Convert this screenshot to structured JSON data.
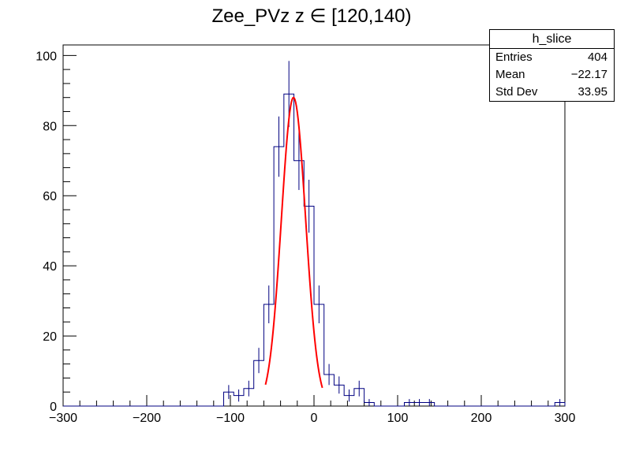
{
  "chart_data": {
    "type": "histogram",
    "title": "Zee_PVz z  ∈ [120,140)",
    "xlabel": "",
    "ylabel": "",
    "xlim": [
      -300,
      300
    ],
    "ylim": [
      0,
      103
    ],
    "x_ticks": [
      -300,
      -200,
      -100,
      0,
      100,
      200,
      300
    ],
    "y_ticks": [
      0,
      20,
      40,
      60,
      80,
      100
    ],
    "bin_width": 12,
    "bin_start": -300,
    "values": [
      0,
      0,
      0,
      0,
      0,
      0,
      0,
      0,
      0,
      0,
      0,
      0,
      0,
      0,
      0,
      0,
      4,
      3,
      5,
      13,
      29,
      74,
      89,
      70,
      57,
      29,
      9,
      6,
      3,
      5,
      1,
      0,
      0,
      0,
      1,
      1,
      1,
      0,
      0,
      0,
      0,
      0,
      0,
      0,
      0,
      0,
      0,
      0,
      0,
      1
    ],
    "line_color": "#000080",
    "fit": {
      "type": "gaussian",
      "amplitude": 88.0,
      "mean": -24.5,
      "sigma": 14.5,
      "range": [
        -58,
        10
      ],
      "color": "#ff0000"
    },
    "stats": {
      "title": "h_slice",
      "rows": [
        {
          "label": "Entries",
          "value": "404"
        },
        {
          "label": "Mean",
          "value": "−22.17"
        },
        {
          "label": "Std Dev",
          "value": "33.95"
        }
      ]
    }
  }
}
